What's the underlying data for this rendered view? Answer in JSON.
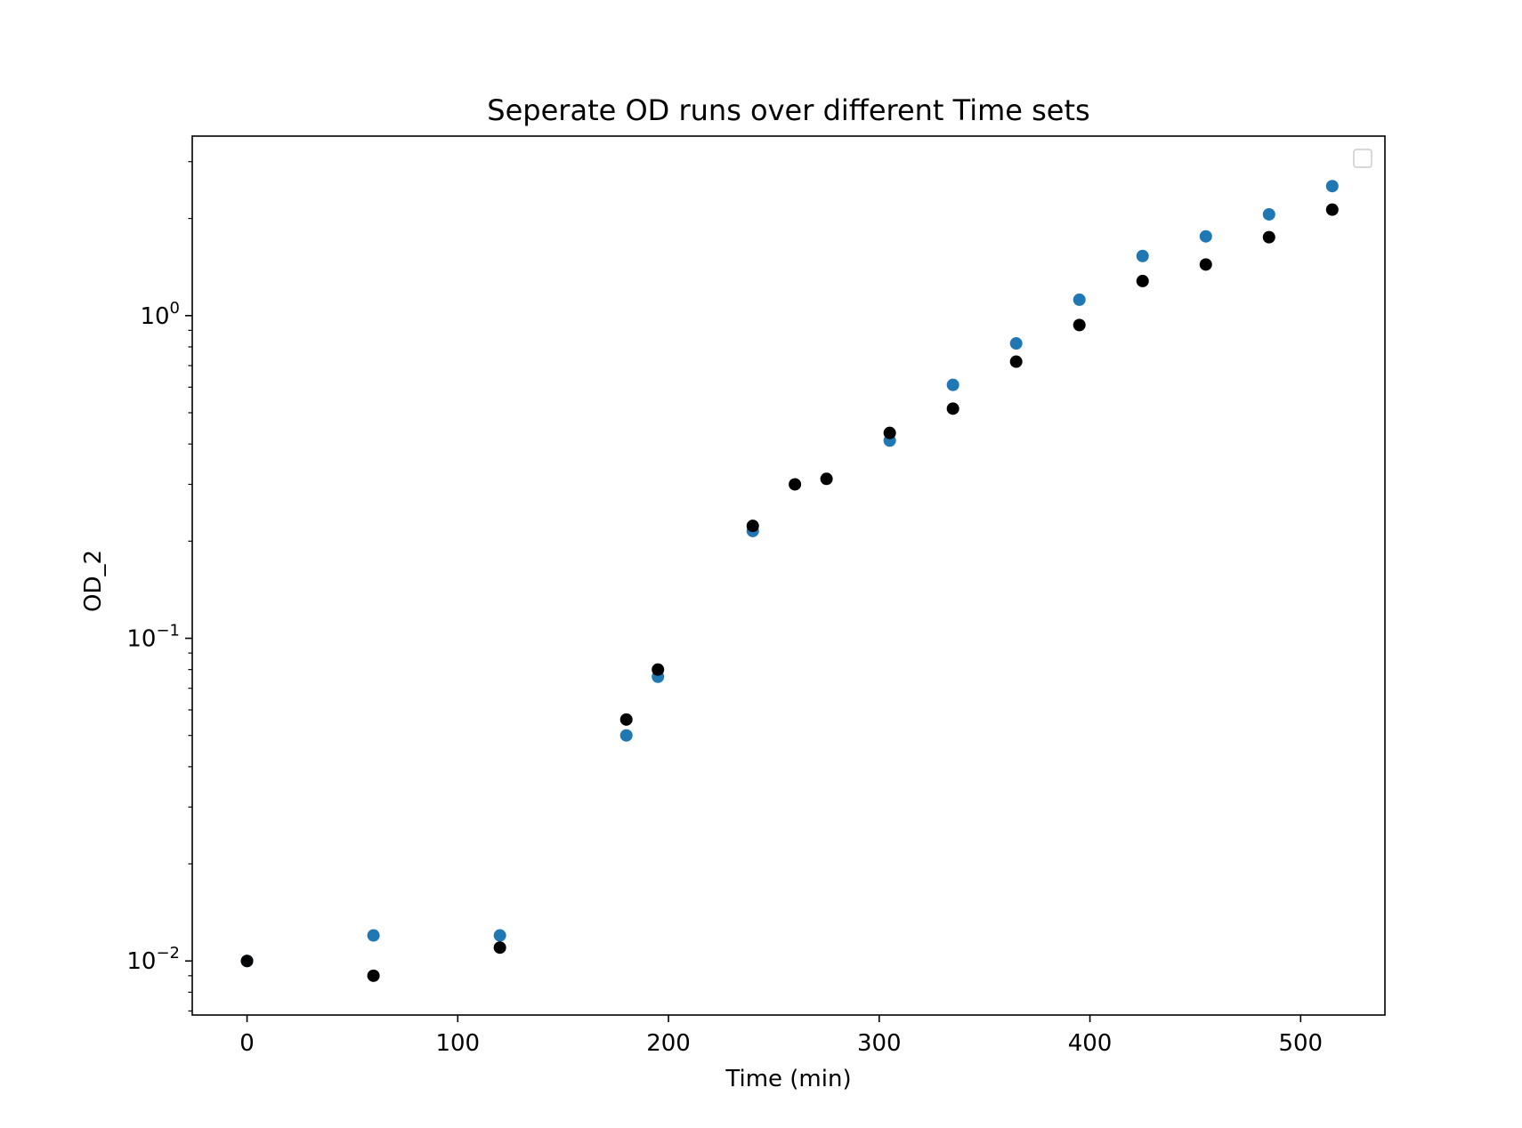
{
  "chart_data": {
    "type": "scatter",
    "title": "Seperate OD runs over different Time sets",
    "xlabel": "Time (min)",
    "ylabel": "OD_2",
    "yscale": "log",
    "xlim": [
      -26,
      540
    ],
    "ylim": [
      0.0068,
      3.6
    ],
    "xticks": [
      0,
      100,
      200,
      300,
      400,
      500
    ],
    "yticks": [
      {
        "value": 0.01,
        "base": "10",
        "exp": "−2"
      },
      {
        "value": 0.1,
        "base": "10",
        "exp": "−1"
      },
      {
        "value": 1,
        "base": "10",
        "exp": "0"
      }
    ],
    "grid": false,
    "legend": {
      "position": "top-right",
      "entries": []
    },
    "colors": {
      "series_blue": "#1f77b4",
      "series_black": "#000000",
      "axes": "#000000",
      "legend_border": "#cccccc"
    },
    "series": [
      {
        "color": "#1f77b4",
        "x": [
          0,
          60,
          120,
          180,
          195,
          240,
          305,
          335,
          365,
          395,
          425,
          455,
          485,
          515
        ],
        "y": [
          0.01,
          0.012,
          0.012,
          0.05,
          0.076,
          0.215,
          0.41,
          0.61,
          0.82,
          1.12,
          1.53,
          1.76,
          2.06,
          2.52
        ]
      },
      {
        "color": "#000000",
        "x": [
          0,
          60,
          120,
          180,
          195,
          240,
          260,
          275,
          305,
          335,
          365,
          395,
          425,
          455,
          485,
          515
        ],
        "y": [
          0.01,
          0.009,
          0.011,
          0.056,
          0.08,
          0.223,
          0.3,
          0.312,
          0.433,
          0.515,
          0.72,
          0.935,
          1.28,
          1.44,
          1.75,
          2.13
        ]
      }
    ]
  }
}
